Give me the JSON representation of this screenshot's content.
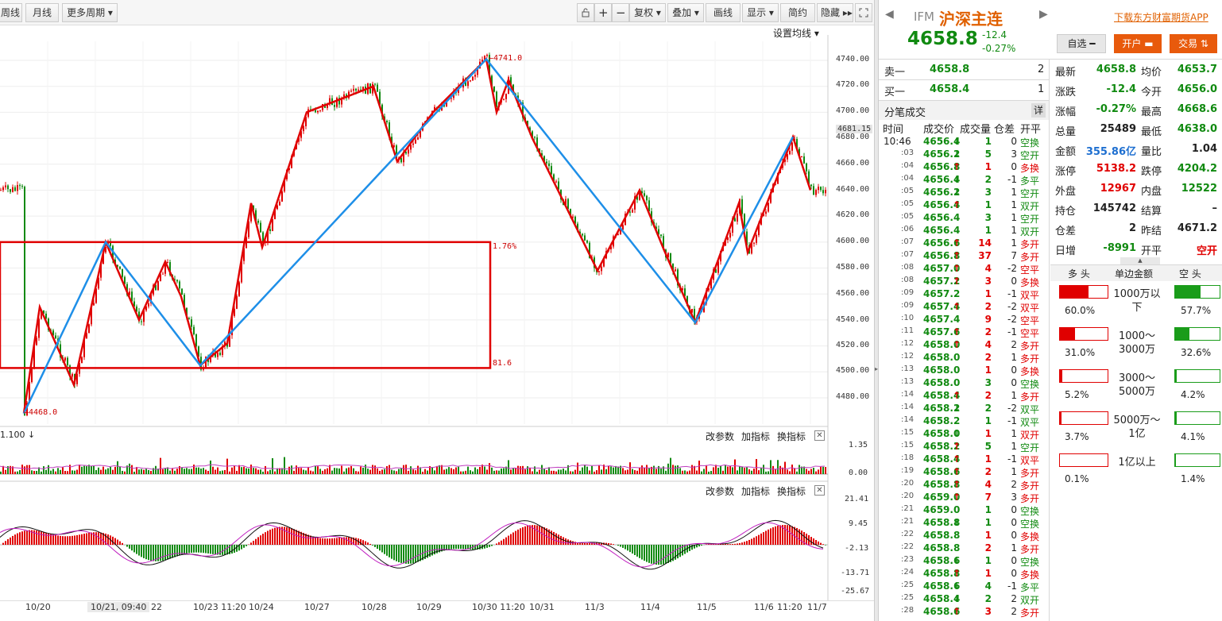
{
  "toolbar": {
    "left_tabs": [
      "周线",
      "月线",
      "更多周期 ▾"
    ],
    "icons": [
      "lock-icon",
      "zoom-in-icon",
      "zoom-out-icon"
    ],
    "buttons": [
      "复权 ▾",
      "叠加 ▾",
      "画线",
      "显示 ▾",
      "简约",
      "隐藏 ▸▸"
    ],
    "fullscreen_icon": "fullscreen-icon"
  },
  "chart": {
    "ma_setting": "设置均线 ▾",
    "price_axis": [
      "4740.00",
      "4720.00",
      "4700.00",
      "4681.15",
      "4680.00",
      "4660.00",
      "4640.00",
      "4620.00",
      "4600.00",
      "4580.00",
      "4560.00",
      "4540.00",
      "4520.00",
      "4500.00",
      "4480.00"
    ],
    "high_marker": "←4741.0",
    "low_marker": "←4468.0",
    "box_pct": "1.76%",
    "box_value": "81.6",
    "volume_label": "1.100 ↓",
    "volume_axis": [
      "1.35",
      "0.00"
    ],
    "macd_axis": [
      "21.41",
      "9.45",
      "-2.13",
      "-13.71",
      "-25.67"
    ],
    "panel_controls": [
      "改参数",
      "加指标",
      "换指标"
    ],
    "dates": [
      "10/20",
      "10/21, 09:40",
      "22",
      "10/23 11:20",
      "10/24",
      "10/27",
      "10/28",
      "10/29",
      "10/30 11:20",
      "10/31",
      "11/3",
      "11/4",
      "11/5",
      "11/6",
      "11:20",
      "11/7"
    ],
    "colors": {
      "kline_up": "#e00000",
      "kline_down": "#118a11",
      "zigzag_red": "#e00000",
      "zigzag_blue": "#1e8fe8"
    }
  },
  "chart_data": {
    "type": "line",
    "title": "",
    "xlabel": "",
    "ylabel": "",
    "ylim": [
      4460,
      4750
    ],
    "x": [
      "10/20",
      "10/21",
      "10/22",
      "10/23",
      "10/24",
      "10/27",
      "10/28",
      "10/29",
      "10/30",
      "10/31",
      "11/3",
      "11/4",
      "11/5",
      "11/6",
      "11/7"
    ],
    "series": [
      {
        "x": [
          "10/20",
          "10/21",
          "10/23",
          "10/30",
          "11/5",
          "11/6"
        ],
        "values": [
          4468.0,
          4600.0,
          4505.0,
          4741.0,
          4538.0,
          4681.0
        ]
      },
      {
        "x": [
          "10/20",
          "10/20",
          "10/20",
          "10/21",
          "10/21",
          "10/21",
          "10/22",
          "10/23",
          "10/23",
          "10/24",
          "10/24",
          "10/27",
          "10/28",
          "10/28",
          "10/29",
          "10/30",
          "10/30",
          "10/30",
          "10/31",
          "11/3",
          "11/4",
          "11/4",
          "11/5",
          "11/5",
          "11/6",
          "11/6",
          "11/7"
        ],
        "values": [
          4468.0,
          4550.0,
          4490.0,
          4600.0,
          4540.0,
          4585.0,
          4558.0,
          4505.0,
          4522.0,
          4630.0,
          4596.0,
          4700.0,
          4720.0,
          4662.0,
          4700.0,
          4741.0,
          4700.0,
          4725.0,
          4680.0,
          4578.0,
          4640.0,
          4595.0,
          4538.0,
          4630.0,
          4592.0,
          4681.0,
          4640.0
        ]
      }
    ]
  },
  "quote": {
    "code": "IFM",
    "name": "沪深主连",
    "download": "下载东方财富期货APP",
    "price": "4658.8",
    "change": "-12.4",
    "change_pct": "-0.27%",
    "watch_button": "自选 ━",
    "open_account_button": "开户 ▬",
    "trade_button": "交易 ⇅",
    "sell_label": "卖一",
    "sell_price": "4658.8",
    "sell_vol": "2",
    "buy_label": "买一",
    "buy_price": "4658.4",
    "buy_vol": "1"
  },
  "ticks": {
    "title": "分笔成交",
    "detail": "详",
    "headers": [
      "时间",
      "成交价",
      "成交量",
      "仓差",
      "开平"
    ],
    "rows": [
      [
        "10:46",
        "4656.4",
        "↓",
        "1",
        "0",
        "空换",
        "g"
      ],
      [
        ":03",
        "4656.2",
        "↓",
        "5",
        "3",
        "空开",
        "g"
      ],
      [
        ":04",
        "4656.8",
        "↑",
        "1",
        "0",
        "多换",
        "r"
      ],
      [
        ":04",
        "4656.4",
        "↓",
        "2",
        "-1",
        "多平",
        "g"
      ],
      [
        ":05",
        "4656.2",
        "↓",
        "3",
        "1",
        "空开",
        "g"
      ],
      [
        ":05",
        "4656.4",
        "↑",
        "1",
        "1",
        "双开",
        "g"
      ],
      [
        ":05",
        "4656.4",
        "",
        "3",
        "1",
        "空开",
        "g"
      ],
      [
        ":06",
        "4656.4",
        "",
        "1",
        "1",
        "双开",
        "g"
      ],
      [
        ":07",
        "4656.6",
        "↑",
        "14",
        "1",
        "多开",
        "r"
      ],
      [
        ":07",
        "4656.8",
        "↑",
        "37",
        "7",
        "多开",
        "r"
      ],
      [
        ":08",
        "4657.0",
        "↑",
        "4",
        "-2",
        "空平",
        "r"
      ],
      [
        ":08",
        "4657.2",
        "↑",
        "3",
        "0",
        "多换",
        "r"
      ],
      [
        ":09",
        "4657.2",
        "",
        "1",
        "-1",
        "双平",
        "r"
      ],
      [
        ":09",
        "4657.4",
        "↑",
        "2",
        "-2",
        "双平",
        "r"
      ],
      [
        ":10",
        "4657.4",
        "",
        "9",
        "-2",
        "空平",
        "r"
      ],
      [
        ":11",
        "4657.6",
        "↑",
        "2",
        "-1",
        "空平",
        "r"
      ],
      [
        ":12",
        "4658.0",
        "↑",
        "4",
        "2",
        "多开",
        "r"
      ],
      [
        ":12",
        "4658.0",
        "",
        "2",
        "1",
        "多开",
        "r"
      ],
      [
        ":13",
        "4658.0",
        "",
        "1",
        "0",
        "多换",
        "r"
      ],
      [
        ":13",
        "4658.0",
        "",
        "3",
        "0",
        "空换",
        "g"
      ],
      [
        ":14",
        "4658.4",
        "↑",
        "2",
        "1",
        "多开",
        "r"
      ],
      [
        ":14",
        "4658.2",
        "↓",
        "2",
        "-2",
        "双平",
        "g"
      ],
      [
        ":14",
        "4658.2",
        "",
        "1",
        "-1",
        "双平",
        "g"
      ],
      [
        ":15",
        "4658.0",
        "↓",
        "1",
        "1",
        "双开",
        "r"
      ],
      [
        ":15",
        "4658.2",
        "↑",
        "5",
        "1",
        "空开",
        "g"
      ],
      [
        ":18",
        "4658.4",
        "↑",
        "1",
        "-1",
        "双平",
        "r"
      ],
      [
        ":19",
        "4658.6",
        "↑",
        "2",
        "1",
        "多开",
        "r"
      ],
      [
        ":20",
        "4658.8",
        "↑",
        "4",
        "2",
        "多开",
        "r"
      ],
      [
        ":20",
        "4659.0",
        "↑",
        "7",
        "3",
        "多开",
        "r"
      ],
      [
        ":21",
        "4659.0",
        "",
        "1",
        "0",
        "空换",
        "g"
      ],
      [
        ":21",
        "4658.8",
        "↓",
        "1",
        "0",
        "空换",
        "g"
      ],
      [
        ":22",
        "4658.8",
        "",
        "1",
        "0",
        "多换",
        "r"
      ],
      [
        ":22",
        "4658.8",
        "",
        "2",
        "1",
        "多开",
        "r"
      ],
      [
        ":23",
        "4658.6",
        "↓",
        "1",
        "0",
        "空换",
        "g"
      ],
      [
        ":24",
        "4658.8",
        "↑",
        "1",
        "0",
        "多换",
        "r"
      ],
      [
        ":25",
        "4658.6",
        "↓",
        "4",
        "-1",
        "多平",
        "g"
      ],
      [
        ":25",
        "4658.4",
        "↓",
        "2",
        "2",
        "双开",
        "g"
      ],
      [
        ":28",
        "4658.6",
        "↑",
        "3",
        "2",
        "多开",
        "r"
      ]
    ]
  },
  "stats": [
    [
      "最新",
      "4658.8",
      "g",
      "均价",
      "4653.7",
      "g"
    ],
    [
      "涨跌",
      "-12.4",
      "g",
      "今开",
      "4656.0",
      "g"
    ],
    [
      "涨幅",
      "-0.27%",
      "g",
      "最高",
      "4668.6",
      "g"
    ],
    [
      "总量",
      "25489",
      "k",
      "最低",
      "4638.0",
      "g"
    ],
    [
      "金额",
      "355.86亿",
      "b",
      "量比",
      "1.04",
      "k"
    ],
    [
      "涨停",
      "5138.2",
      "r",
      "跌停",
      "4204.2",
      "g"
    ],
    [
      "外盘",
      "12967",
      "r",
      "内盘",
      "12522",
      "g"
    ],
    [
      "持仓",
      "145742",
      "k",
      "结算",
      "–",
      "k"
    ],
    [
      "仓差",
      "2",
      "k",
      "昨结",
      "4671.2",
      "k"
    ],
    [
      "日增",
      "-8991",
      "g",
      "开平",
      "空开",
      "r"
    ]
  ],
  "amount": {
    "headers": [
      "多 头",
      "单边金额",
      "空 头"
    ],
    "tiers": [
      {
        "label": "1000万以下",
        "long_pct": "60.0%",
        "long_fill": 0.6,
        "short_pct": "57.7%",
        "short_fill": 0.577
      },
      {
        "label": "1000～3000万",
        "long_pct": "31.0%",
        "long_fill": 0.31,
        "short_pct": "32.6%",
        "short_fill": 0.326
      },
      {
        "label": "3000～5000万",
        "long_pct": "5.2%",
        "long_fill": 0.052,
        "short_pct": "4.2%",
        "short_fill": 0.042
      },
      {
        "label": "5000万～1亿",
        "long_pct": "3.7%",
        "long_fill": 0.037,
        "short_pct": "4.1%",
        "short_fill": 0.041
      },
      {
        "label": "1亿以上",
        "long_pct": "0.1%",
        "long_fill": 0.001,
        "short_pct": "1.4%",
        "short_fill": 0.014
      }
    ]
  }
}
